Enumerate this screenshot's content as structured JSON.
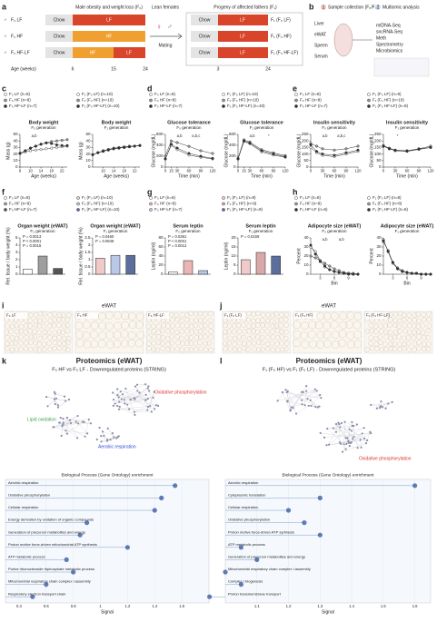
{
  "schematic": {
    "a": {
      "label": "a",
      "headers": [
        "Male obesity and weight loss (F₀)",
        "Lean females",
        "Progeny of affected fathers (F₁)"
      ],
      "groups": [
        "F₀ LF",
        "F₀ HF",
        "F₀ HF-LF"
      ],
      "diets": [
        "Chow",
        "LF",
        "HF"
      ],
      "age_label": "Age (weeks)",
      "ages_f0": [
        "6",
        "15",
        "24"
      ],
      "mating": "Mating",
      "progeny": [
        "F₁ (F₀ LF)",
        "F₁ (F₀ HF)",
        "F₁ (F₀ HF-LF)"
      ],
      "ages_f1": [
        "3",
        "24"
      ]
    },
    "b": {
      "label": "b",
      "steps": [
        "Sample collection (F₀/F₁)",
        "Multiomic analysis"
      ],
      "step_numbers": [
        "1",
        "2"
      ],
      "tissues": [
        "Liver",
        "eWAT",
        "Sperm",
        "Serum"
      ],
      "analyses": [
        "mtDNA-Seq",
        "sncRNA-Seq",
        "Meth",
        "Spectrometry",
        "Microbiomics"
      ]
    }
  },
  "panels": [
    "c",
    "d",
    "e",
    "f",
    "g",
    "h",
    "i",
    "j",
    "k",
    "l"
  ],
  "charts": [
    {
      "type": "line",
      "title": "Body weight",
      "subtitle": "F₀ generation",
      "ylabel": "Mass (g)",
      "xlabel": "Age (weeks)",
      "x": [
        6,
        8,
        10,
        12,
        14,
        16,
        18,
        20,
        22,
        24
      ],
      "xlim": [
        6,
        24
      ],
      "xticks": [
        6,
        10,
        14,
        18,
        22
      ],
      "ylim": [
        0,
        50
      ],
      "yticks": [
        0,
        10,
        20,
        30,
        40,
        50
      ],
      "annotations": [
        "a,b"
      ],
      "series": [
        {
          "name": "F₀ LF (n=8)",
          "color": "#ffffff",
          "values": [
            21,
            23,
            25,
            26,
            27,
            28,
            29,
            30,
            31,
            32
          ]
        },
        {
          "name": "F₀ HF (n=8)",
          "color": "#9e9e9e",
          "values": [
            21,
            25,
            29,
            32,
            35,
            37,
            39,
            40,
            41,
            42
          ]
        },
        {
          "name": "F₀ HF-LF (n=7)",
          "color": "#333333",
          "values": [
            21,
            25,
            29,
            32,
            35,
            37,
            36,
            34,
            33,
            33
          ]
        }
      ]
    },
    {
      "type": "line",
      "title": "Body weight",
      "subtitle": "F₁ generation",
      "ylabel": "Mass (g)",
      "xlabel": "Age (weeks)",
      "x": [
        6,
        8,
        10,
        12,
        14,
        16,
        18,
        20,
        22,
        24
      ],
      "xlim": [
        6,
        24
      ],
      "xticks": [
        10,
        14,
        18,
        22
      ],
      "ylim": [
        0,
        50
      ],
      "yticks": [
        0,
        10,
        20,
        30,
        40,
        50
      ],
      "annotations": [],
      "series": [
        {
          "name": "F₁ (F₀ LF) (n=10)",
          "color": "#ffffff",
          "values": [
            19,
            22,
            25,
            27,
            28,
            29,
            30,
            31,
            32,
            33
          ]
        },
        {
          "name": "F₁ (F₀ HF) (n=10)",
          "color": "#9e9e9e",
          "values": [
            19,
            22,
            25,
            27,
            29,
            30,
            31,
            32,
            32,
            33
          ]
        },
        {
          "name": "F₁ (F₀ HF-LF) (n=10)",
          "color": "#333333",
          "values": [
            19,
            22,
            24,
            26,
            28,
            29,
            30,
            31,
            32,
            33
          ]
        }
      ]
    },
    {
      "type": "line",
      "title": "Glucose tolerance",
      "subtitle": "F₀ generation",
      "ylabel": "Glucose (mg/dL)",
      "xlabel": "Time (min)",
      "x": [
        0,
        15,
        30,
        60,
        90,
        120
      ],
      "xlim": [
        0,
        120
      ],
      "xticks": [
        0,
        15,
        30,
        60,
        90,
        120
      ],
      "ylim": [
        0,
        600
      ],
      "yticks": [
        0,
        200,
        400,
        600
      ],
      "annotations": [
        "a,b",
        "a,b,c"
      ],
      "series": [
        {
          "name": "F₀ LF (n=8)",
          "color": "#ffffff",
          "values": [
            150,
            400,
            320,
            220,
            180,
            150
          ]
        },
        {
          "name": "F₀ HF (n=8)",
          "color": "#9e9e9e",
          "values": [
            200,
            480,
            450,
            380,
            300,
            250
          ]
        },
        {
          "name": "F₀ HF-LF (n=7)",
          "color": "#333333",
          "values": [
            150,
            420,
            350,
            250,
            200,
            160
          ]
        }
      ]
    },
    {
      "type": "line",
      "title": "Glucose tolerance",
      "subtitle": "F₁ generation",
      "ylabel": "Glucose (mg/dL)",
      "xlabel": "Time (min)",
      "x": [
        0,
        15,
        30,
        60,
        90,
        120
      ],
      "xlim": [
        0,
        120
      ],
      "xticks": [
        0,
        15,
        30,
        60,
        90,
        120
      ],
      "ylim": [
        0,
        600
      ],
      "yticks": [
        0,
        200,
        400,
        600
      ],
      "annotations": [
        "a,b",
        "*"
      ],
      "series": [
        {
          "name": "F₁ (F₀ LF) (n=10)",
          "color": "#ffffff",
          "values": [
            150,
            470,
            430,
            280,
            220,
            180
          ]
        },
        {
          "name": "F₁ (F₀ HF) (n=10)",
          "color": "#9e9e9e",
          "values": [
            160,
            500,
            460,
            320,
            260,
            210
          ]
        },
        {
          "name": "F₁ (F₀ HF-LF) (n=10)",
          "color": "#333333",
          "values": [
            150,
            480,
            440,
            300,
            240,
            190
          ]
        }
      ]
    },
    {
      "type": "line",
      "title": "Insulin sensitivity",
      "subtitle": "F₀ generation",
      "ylabel": "Glucose (mg/dL)",
      "xlabel": "Time (min)",
      "x": [
        0,
        15,
        30,
        60,
        90,
        120
      ],
      "xlim": [
        0,
        120
      ],
      "xticks": [
        0,
        30,
        60,
        90,
        120
      ],
      "ylim": [
        0,
        250
      ],
      "yticks": [
        0,
        50,
        100,
        150,
        200,
        250
      ],
      "annotations": [
        "a,b",
        "a,b,c"
      ],
      "series": [
        {
          "name": "F₀ LF (n=8)",
          "color": "#ffffff",
          "values": [
            150,
            110,
            90,
            80,
            100,
            120
          ]
        },
        {
          "name": "F₀ HF (n=8)",
          "color": "#9e9e9e",
          "values": [
            180,
            160,
            140,
            130,
            140,
            160
          ]
        },
        {
          "name": "F₀ HF-LF (n=7)",
          "color": "#333333",
          "values": [
            170,
            120,
            100,
            90,
            110,
            130
          ]
        }
      ]
    },
    {
      "type": "line",
      "title": "Insulin sensitivity",
      "subtitle": "F₁ generation",
      "ylabel": "Glucose (mg/dL)",
      "xlabel": "Time (min)",
      "x": [
        0,
        15,
        30,
        60,
        90,
        120
      ],
      "xlim": [
        0,
        120
      ],
      "xticks": [
        0,
        30,
        60,
        90,
        120
      ],
      "ylim": [
        0,
        250
      ],
      "yticks": [
        0,
        50,
        100,
        150,
        200,
        250
      ],
      "annotations": [
        "*"
      ],
      "series": [
        {
          "name": "F₁ (F₀ LF) (n=9)",
          "color": "#ffffff",
          "values": [
            160,
            140,
            125,
            120,
            135,
            150
          ]
        },
        {
          "name": "F₁ (F₀ HF) (n=10)",
          "color": "#9e9e9e",
          "values": [
            165,
            145,
            130,
            125,
            140,
            160
          ]
        },
        {
          "name": "F₁ (F₀ HF-LF) (n=9)",
          "color": "#333333",
          "values": [
            160,
            140,
            128,
            122,
            138,
            150
          ]
        }
      ]
    },
    {
      "type": "bar",
      "title": "Organ weight (eWAT)",
      "subtitle": "F₀ generation",
      "ylabel": "Rel. tissue / body weight (%)",
      "ylim": [
        0,
        5
      ],
      "yticks": [
        0,
        1,
        2,
        3,
        4,
        5
      ],
      "annotations": [
        "P = 0.0013",
        "P < 0.0001",
        "P = 0.0015"
      ],
      "series": [
        {
          "name": "F₀ LF (n=8)",
          "color": "#ffffff",
          "values": [
            0.7
          ]
        },
        {
          "name": "F₀ HF (n=8)",
          "color": "#9e9e9e",
          "values": [
            2.5
          ]
        },
        {
          "name": "F₀ HF-LF (n=7)",
          "color": "#555555",
          "values": [
            0.8
          ]
        }
      ]
    },
    {
      "type": "bar",
      "title": "Organ weight (eWAT)",
      "subtitle": "F₁ generation",
      "ylabel": "Rel. tissue / body weight (%)",
      "ylim": [
        0,
        2.5
      ],
      "yticks": [
        0,
        0.5,
        1,
        1.5,
        2,
        2.5
      ],
      "annotations": [
        "P = 0.0460",
        "P = 0.0946"
      ],
      "series": [
        {
          "name": "F₁ (F₀ LF) (n=10)",
          "color": "#f2c9c9",
          "values": [
            1.1
          ]
        },
        {
          "name": "F₁ (F₀ HF) (n=10)",
          "color": "#b9c8e6",
          "values": [
            1.3
          ]
        },
        {
          "name": "F₁ (F₀ HF-LF) (n=10)",
          "color": "#5b6e9c",
          "values": [
            1.3
          ]
        }
      ]
    },
    {
      "type": "bar",
      "title": "Serum leptin",
      "subtitle": "F₀ generation",
      "ylabel": "Leptin (ng/ml)",
      "ylim": [
        0,
        80
      ],
      "yticks": [
        0,
        20,
        40,
        60,
        80
      ],
      "annotations": [
        "P = 0.0381",
        "P < 0.0001",
        "P = 0.0012"
      ],
      "series": [
        {
          "name": "F₀ LF (n=6)",
          "color": "#ffffff",
          "values": [
            5
          ]
        },
        {
          "name": "F₀ HF (n=8)",
          "color": "#e9b5b5",
          "values": [
            30
          ]
        },
        {
          "name": "F₀ HF-LF (n=7)",
          "color": "#b9c8e6",
          "values": [
            8
          ]
        }
      ]
    },
    {
      "type": "bar",
      "title": "Serum leptin",
      "subtitle": "F₁ generation",
      "ylabel": "Leptin (ng/ml)",
      "ylim": [
        0,
        20
      ],
      "yticks": [
        0,
        5,
        10,
        15,
        20
      ],
      "annotations": [
        "P = 0.0159"
      ],
      "series": [
        {
          "name": "F₁ (F₀ LF) (n=9)",
          "color": "#f2c9c9",
          "values": [
            8
          ]
        },
        {
          "name": "F₁ (F₀ HF) (n=9)",
          "color": "#d9a9a9",
          "values": [
            12
          ]
        },
        {
          "name": "F₁ (F₀ HF-LF) (n=9)",
          "color": "#5b6e9c",
          "values": [
            10
          ]
        }
      ]
    },
    {
      "type": "line",
      "title": "Adipocyte size (eWAT)",
      "subtitle": "F₀ generation",
      "ylabel": "Percent",
      "xlabel": "Bin",
      "x": [
        1,
        2,
        3,
        4,
        5,
        6,
        7,
        8,
        9,
        10,
        11
      ],
      "xlim": [
        1,
        11
      ],
      "xticks": [
        3,
        6,
        9
      ],
      "ylim": [
        0,
        40
      ],
      "yticks": [
        0,
        10,
        20,
        30,
        40
      ],
      "annotations": [
        "a,b",
        "a,b"
      ],
      "series": [
        {
          "name": "F₀ LF (n=8)",
          "color": "#ffffff",
          "values": [
            30,
            25,
            15,
            8,
            5,
            3,
            2,
            1,
            1,
            0,
            0
          ]
        },
        {
          "name": "F₀ HF (n=8)",
          "color": "#9e9e9e",
          "values": [
            20,
            18,
            15,
            12,
            9,
            6,
            4,
            2,
            1,
            1,
            0
          ]
        },
        {
          "name": "F₀ HF-LF (n=6)",
          "color": "#333333",
          "values": [
            32,
            22,
            14,
            9,
            5,
            3,
            2,
            1,
            0,
            0,
            0
          ]
        }
      ]
    },
    {
      "type": "line",
      "title": "Adipocyte size (eWAT)",
      "subtitle": "F₁ generation",
      "ylabel": "Percent",
      "xlabel": "Bin",
      "x": [
        1,
        2,
        3,
        4,
        5,
        6,
        7,
        8,
        9,
        10,
        11
      ],
      "xlim": [
        1,
        11
      ],
      "xticks": [
        3,
        6,
        9
      ],
      "ylim": [
        0,
        40
      ],
      "yticks": [
        0,
        10,
        20,
        30,
        40
      ],
      "annotations": [],
      "series": [
        {
          "name": "F₁ (F₀ LF) (n=8)",
          "color": "#ffffff",
          "values": [
            38,
            25,
            12,
            6,
            3,
            2,
            1,
            1,
            0,
            0,
            0
          ]
        },
        {
          "name": "F₁ (F₀ HF) (n=8)",
          "color": "#9e9e9e",
          "values": [
            36,
            26,
            13,
            7,
            4,
            2,
            1,
            1,
            0,
            0,
            0
          ]
        },
        {
          "name": "F₁ (F₀ HF-LF) (n=8)",
          "color": "#333333",
          "values": [
            37,
            25,
            13,
            6,
            3,
            2,
            1,
            1,
            0,
            0,
            0
          ]
        }
      ]
    },
    {
      "type": "dot",
      "title": "Biological Process (Gene Ontology) enrichment",
      "xlabel": "Signal",
      "color": "#3b5ba5",
      "xlim": [
        0.3,
        1.8
      ],
      "xticks": [
        0.4,
        0.6,
        0.8,
        1,
        1.2,
        1.4,
        1.6
      ],
      "categories": [
        "Aerobic respiration",
        "Oxidative phosphorylation",
        "Cellular respiration",
        "Energy derivation by oxidation of organic compounds",
        "Generation of precursor metabolites and energy",
        "Proton motive force-driven mitochondrial ATP synthesis",
        "ATP metabolic process",
        "Purine ribonucleoside triphosphate metabolic process",
        "Mitochondrial respiratory chain complex I assembly",
        "Respiratory electron transport chain"
      ],
      "values": [
        1.55,
        1.45,
        1.4,
        0.9,
        0.85,
        1.2,
        0.75,
        0.8,
        0.6,
        0.5
      ]
    },
    {
      "type": "dot",
      "title": "Biological Process (Gene Ontology) enrichment",
      "xlabel": "Signal",
      "color": "#3b5ba5",
      "xlim": [
        1,
        1.65
      ],
      "xticks": [
        1.1,
        1.2,
        1.3,
        1.4,
        1.5,
        1.6
      ],
      "categories": [
        "Aerobic respiration",
        "Cytoplasmic translation",
        "Cellular respiration",
        "Oxidative phosphorylation",
        "Proton motive force-driven ATP synthesis",
        "ATP metabolic process",
        "Generation of precursor metabolites and energy",
        "Mitochondrial respiratory chain complex I assembly",
        "Complex I biogenesis",
        "Proton transmembrane transport"
      ],
      "values": [
        1.6,
        1.3,
        1.2,
        1.25,
        1.3,
        1.05,
        1.1,
        1.0,
        1.05,
        0.95
      ]
    }
  ],
  "histology": {
    "header_i": "eWAT",
    "header_j": "eWAT",
    "labels_i": [
      "F₀ LF",
      "F₀ HF",
      "F₀ HF-LF"
    ],
    "labels_j": [
      "F₁ (F₀ LF)",
      "F₁ (F₀ HF)",
      "F₁ (F₀ HF-LF)"
    ]
  },
  "proteomics": {
    "k": {
      "title": "Proteomics (eWAT)",
      "subtitle": "F₀ HF vs F₀ LF - Downregulated proteins (STRING)",
      "clusters": [
        "Oxidative phosphorylation",
        "Lipid oxidation",
        "Aerobic respiration"
      ]
    },
    "l": {
      "title": "Proteomics (eWAT)",
      "subtitle": "F₁ (F₀ HF) vs F₁ (F₀ LF) - Downregulated proteins (STRING)",
      "clusters": [
        "Oxidative phosphorylation"
      ]
    }
  }
}
